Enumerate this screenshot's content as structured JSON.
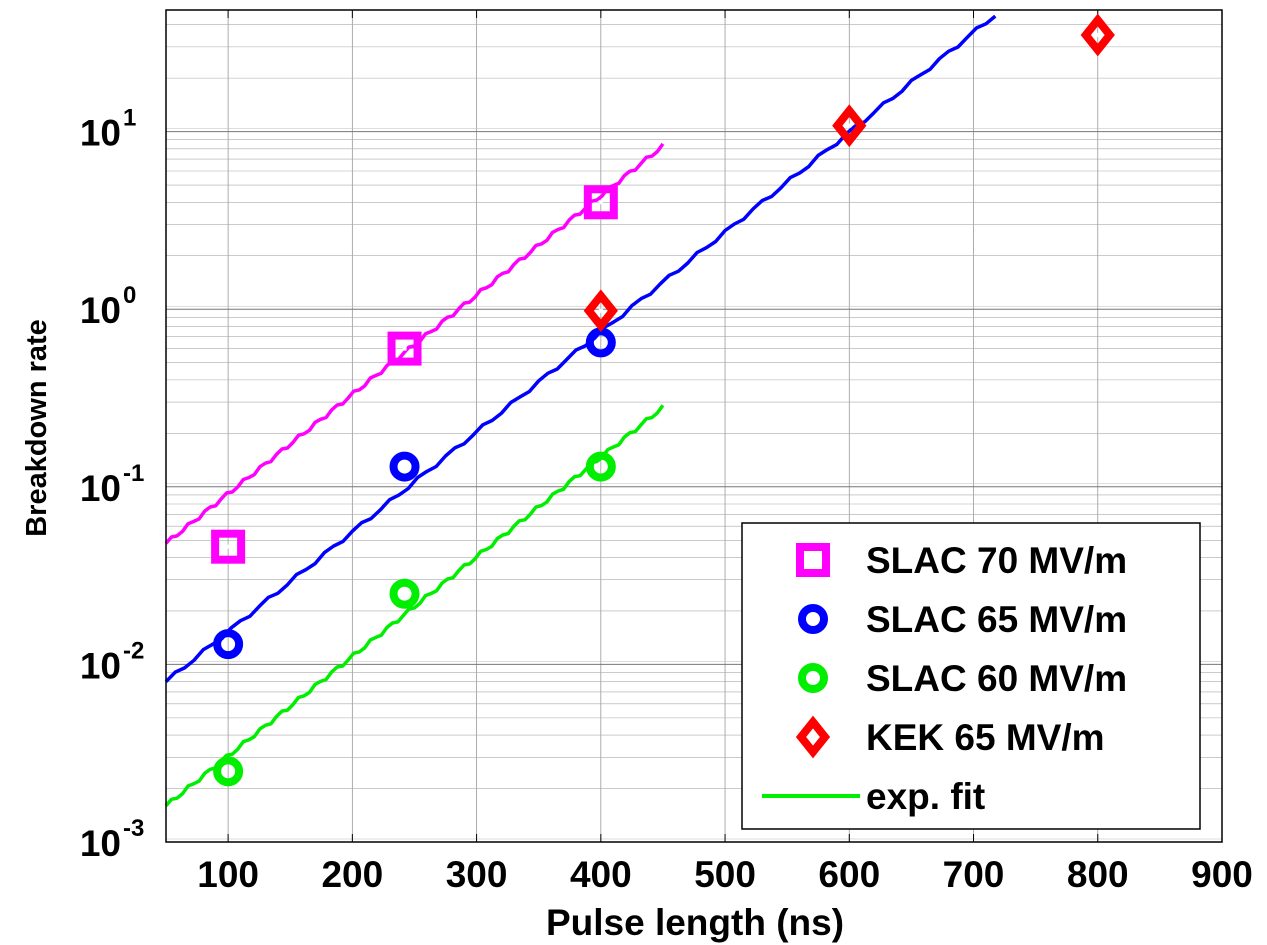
{
  "chart_data": {
    "type": "scatter",
    "title": "",
    "xlabel": "Pulse length (ns)",
    "ylabel": "Breakdown rate",
    "xlim": [
      50,
      900
    ],
    "ylim": [
      0.001,
      50
    ],
    "yscale": "log",
    "grid": true,
    "legend_position": "bottom-right",
    "xticks": [
      100,
      200,
      300,
      400,
      500,
      600,
      700,
      800,
      900
    ],
    "xtick_labels": [
      "100",
      "200",
      "300",
      "400",
      "500",
      "600",
      "700",
      "800",
      "900"
    ],
    "yticks": [
      {
        "value": 0.001,
        "base": "10",
        "exp": "-3"
      },
      {
        "value": 0.01,
        "base": "10",
        "exp": "-2"
      },
      {
        "value": 0.1,
        "base": "10",
        "exp": "-1"
      },
      {
        "value": 1,
        "base": "10",
        "exp": "0"
      },
      {
        "value": 10,
        "base": "10",
        "exp": "1"
      }
    ],
    "series": [
      {
        "name": "SLAC 70 MV/m",
        "marker": "square",
        "color": "#ff00ff",
        "x": [
          100,
          242,
          400
        ],
        "y": [
          0.046,
          0.6,
          4.0
        ]
      },
      {
        "name": "SLAC 65 MV/m",
        "marker": "circle",
        "color": "#0000ff",
        "x": [
          100,
          242,
          400
        ],
        "y": [
          0.013,
          0.13,
          0.65
        ]
      },
      {
        "name": "SLAC 60 MV/m",
        "marker": "circle",
        "color": "#00ee00",
        "x": [
          100,
          242,
          400
        ],
        "y": [
          0.0025,
          0.025,
          0.13
        ]
      },
      {
        "name": "KEK 65 MV/m",
        "marker": "diamond",
        "color": "#ff0000",
        "x": [
          400,
          600,
          800
        ],
        "y": [
          0.98,
          10.8,
          35
        ]
      }
    ],
    "fits": [
      {
        "color": "#ff00ff",
        "x": [
          50,
          450
        ],
        "y": [
          0.048,
          8.3
        ]
      },
      {
        "color": "#0000ff",
        "x": [
          50,
          725
        ],
        "y": [
          0.008,
          50
        ]
      },
      {
        "color": "#00ee00",
        "x": [
          50,
          450
        ],
        "y": [
          0.0016,
          0.28
        ]
      }
    ],
    "legend": [
      {
        "label": "SLAC 70 MV/m",
        "marker": "square",
        "color": "#ff00ff"
      },
      {
        "label": "SLAC 65 MV/m",
        "marker": "circle",
        "color": "#0000ff"
      },
      {
        "label": "SLAC 60 MV/m",
        "marker": "circle",
        "color": "#00ee00"
      },
      {
        "label": "KEK 65 MV/m",
        "marker": "diamond",
        "color": "#ff0000"
      },
      {
        "label": "exp. fit",
        "marker": "line",
        "color": "#00ee00"
      }
    ]
  }
}
